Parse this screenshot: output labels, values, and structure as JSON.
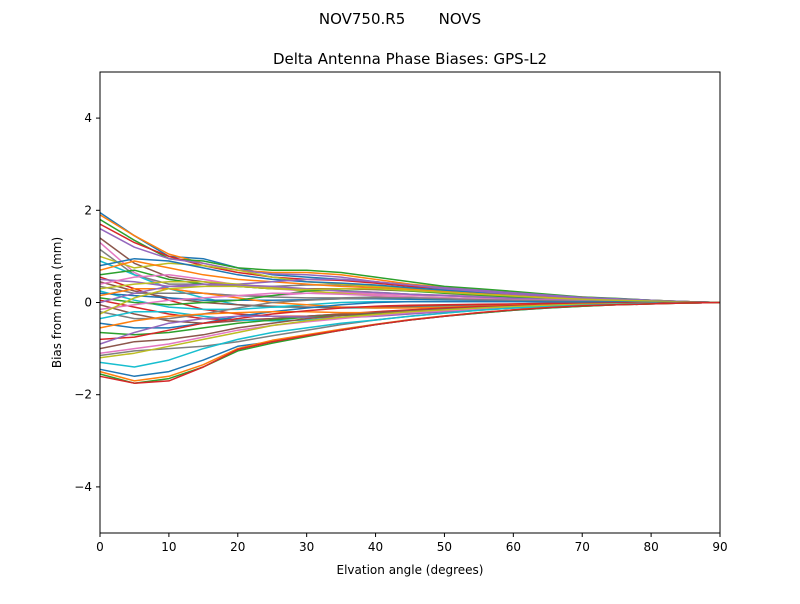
{
  "figure": {
    "suptitle": "NOV750.R5       NOVS"
  },
  "chart_data": {
    "type": "line",
    "title": "Delta Antenna Phase Biases: GPS-L2",
    "xlabel": "Elvation angle (degrees)",
    "ylabel": "Bias from mean (mm)",
    "xlim": [
      0,
      90
    ],
    "ylim": [
      -5,
      5
    ],
    "xticks": [
      0,
      10,
      20,
      30,
      40,
      50,
      60,
      70,
      80,
      90
    ],
    "xtick_labels": [
      "0",
      "10",
      "20",
      "30",
      "40",
      "50",
      "60",
      "70",
      "80",
      "90"
    ],
    "yticks": [
      -4,
      -2,
      0,
      2,
      4
    ],
    "ytick_labels": [
      "−4",
      "−2",
      "0",
      "2",
      "4"
    ],
    "grid": false,
    "legend": "none",
    "colors": [
      "#1f77b4",
      "#ff7f0e",
      "#2ca02c",
      "#d62728",
      "#9467bd",
      "#8c564b",
      "#e377c2",
      "#7f7f7f",
      "#bcbd22",
      "#17becf"
    ],
    "x": [
      0,
      5,
      10,
      15,
      20,
      25,
      30,
      35,
      40,
      45,
      50,
      55,
      60,
      65,
      70,
      75,
      80,
      85,
      90
    ],
    "series": [
      {
        "values": [
          1.95,
          1.45,
          1.0,
          0.95,
          0.75,
          0.6,
          0.55,
          0.5,
          0.45,
          0.35,
          0.3,
          0.25,
          0.2,
          0.15,
          0.1,
          0.08,
          0.05,
          0.02,
          0.0
        ]
      },
      {
        "values": [
          1.9,
          1.45,
          1.05,
          0.85,
          0.7,
          0.65,
          0.65,
          0.6,
          0.5,
          0.4,
          0.33,
          0.28,
          0.22,
          0.16,
          0.12,
          0.08,
          0.05,
          0.02,
          0.0
        ]
      },
      {
        "values": [
          1.8,
          1.35,
          0.95,
          0.9,
          0.75,
          0.7,
          0.7,
          0.65,
          0.55,
          0.45,
          0.35,
          0.3,
          0.24,
          0.18,
          0.12,
          0.09,
          0.05,
          0.02,
          0.0
        ]
      },
      {
        "values": [
          1.7,
          1.3,
          1.0,
          0.8,
          0.65,
          0.55,
          0.5,
          0.48,
          0.42,
          0.35,
          0.3,
          0.24,
          0.2,
          0.15,
          0.1,
          0.07,
          0.04,
          0.02,
          0.0
        ]
      },
      {
        "values": [
          1.6,
          1.2,
          0.95,
          0.85,
          0.7,
          0.62,
          0.6,
          0.55,
          0.45,
          0.38,
          0.32,
          0.27,
          0.21,
          0.16,
          0.11,
          0.08,
          0.05,
          0.02,
          0.0
        ]
      },
      {
        "values": [
          1.4,
          0.85,
          0.55,
          0.45,
          0.35,
          0.3,
          0.3,
          0.3,
          0.28,
          0.25,
          0.22,
          0.2,
          0.16,
          0.12,
          0.09,
          0.06,
          0.04,
          0.02,
          0.0
        ]
      },
      {
        "values": [
          1.3,
          0.65,
          0.3,
          0.2,
          0.15,
          0.15,
          0.2,
          0.22,
          0.2,
          0.18,
          0.16,
          0.14,
          0.12,
          0.09,
          0.07,
          0.05,
          0.03,
          0.01,
          0.0
        ]
      },
      {
        "values": [
          1.15,
          0.6,
          0.4,
          0.4,
          0.35,
          0.35,
          0.38,
          0.38,
          0.35,
          0.3,
          0.25,
          0.2,
          0.16,
          0.12,
          0.09,
          0.06,
          0.04,
          0.02,
          0.0
        ]
      },
      {
        "values": [
          1.0,
          0.75,
          0.85,
          0.8,
          0.7,
          0.55,
          0.45,
          0.4,
          0.35,
          0.3,
          0.25,
          0.2,
          0.16,
          0.12,
          0.09,
          0.06,
          0.04,
          0.02,
          0.0
        ]
      },
      {
        "values": [
          0.9,
          0.6,
          0.3,
          0.1,
          -0.05,
          -0.1,
          -0.1,
          -0.12,
          -0.12,
          -0.1,
          -0.08,
          -0.06,
          -0.05,
          -0.04,
          -0.03,
          -0.02,
          -0.01,
          0.0,
          0.0
        ]
      },
      {
        "values": [
          0.8,
          0.95,
          0.9,
          0.75,
          0.6,
          0.5,
          0.45,
          0.42,
          0.38,
          0.32,
          0.27,
          0.22,
          0.17,
          0.13,
          0.1,
          0.07,
          0.04,
          0.02,
          0.0
        ]
      },
      {
        "values": [
          0.7,
          0.9,
          0.75,
          0.6,
          0.5,
          0.45,
          0.4,
          0.35,
          0.32,
          0.28,
          0.23,
          0.19,
          0.15,
          0.11,
          0.08,
          0.05,
          0.03,
          0.01,
          0.0
        ]
      },
      {
        "values": [
          0.6,
          0.7,
          0.5,
          0.4,
          0.35,
          0.3,
          0.28,
          0.26,
          0.22,
          0.18,
          0.15,
          0.12,
          0.1,
          0.08,
          0.05,
          0.03,
          0.02,
          0.01,
          0.0
        ]
      },
      {
        "values": [
          0.55,
          0.3,
          0.05,
          -0.15,
          -0.25,
          -0.3,
          -0.3,
          -0.28,
          -0.25,
          -0.2,
          -0.16,
          -0.12,
          -0.09,
          -0.07,
          -0.05,
          -0.03,
          -0.02,
          -0.01,
          0.0
        ]
      },
      {
        "values": [
          0.5,
          0.45,
          0.35,
          0.35,
          0.4,
          0.45,
          0.5,
          0.5,
          0.45,
          0.38,
          0.3,
          0.24,
          0.18,
          0.14,
          0.1,
          0.07,
          0.04,
          0.02,
          0.0
        ]
      },
      {
        "values": [
          0.45,
          0.25,
          0.1,
          0.0,
          -0.05,
          -0.08,
          -0.1,
          -0.1,
          -0.1,
          -0.08,
          -0.06,
          -0.05,
          -0.04,
          -0.03,
          -0.02,
          -0.01,
          -0.01,
          0.0,
          0.0
        ]
      },
      {
        "values": [
          0.4,
          0.55,
          0.6,
          0.5,
          0.38,
          0.3,
          0.25,
          0.2,
          0.18,
          0.16,
          0.14,
          0.12,
          0.1,
          0.07,
          0.05,
          0.03,
          0.02,
          0.01,
          0.0
        ]
      },
      {
        "values": [
          0.35,
          0.2,
          0.2,
          0.2,
          0.15,
          0.12,
          0.1,
          0.1,
          0.12,
          0.12,
          0.1,
          0.08,
          0.07,
          0.05,
          0.04,
          0.03,
          0.02,
          0.01,
          0.0
        ]
      },
      {
        "values": [
          0.3,
          0.4,
          0.45,
          0.45,
          0.4,
          0.33,
          0.25,
          0.2,
          0.15,
          0.12,
          0.1,
          0.08,
          0.06,
          0.05,
          0.04,
          0.02,
          0.01,
          0.0,
          0.0
        ]
      },
      {
        "values": [
          0.25,
          0.05,
          -0.1,
          -0.15,
          -0.15,
          -0.1,
          -0.05,
          0.0,
          0.02,
          0.02,
          0.02,
          0.02,
          0.02,
          0.01,
          0.01,
          0.01,
          0.0,
          0.0,
          0.0
        ]
      },
      {
        "values": [
          0.2,
          0.15,
          0.1,
          0.05,
          0.05,
          0.05,
          0.06,
          0.08,
          0.08,
          0.07,
          0.06,
          0.05,
          0.04,
          0.03,
          0.02,
          0.01,
          0.01,
          0.0,
          0.0
        ]
      },
      {
        "values": [
          0.15,
          0.3,
          0.3,
          0.2,
          0.1,
          0.0,
          -0.05,
          -0.1,
          -0.12,
          -0.12,
          -0.1,
          -0.08,
          -0.06,
          -0.04,
          -0.03,
          -0.02,
          -0.01,
          0.0,
          0.0
        ]
      },
      {
        "values": [
          0.1,
          0.0,
          -0.05,
          0.0,
          0.05,
          0.15,
          0.25,
          0.3,
          0.3,
          0.25,
          0.2,
          0.16,
          0.12,
          0.09,
          0.06,
          0.04,
          0.02,
          0.01,
          0.0
        ]
      },
      {
        "values": [
          0.05,
          -0.1,
          -0.25,
          -0.35,
          -0.38,
          -0.35,
          -0.3,
          -0.25,
          -0.2,
          -0.16,
          -0.12,
          -0.09,
          -0.07,
          -0.05,
          -0.04,
          -0.02,
          -0.01,
          0.0,
          0.0
        ]
      },
      {
        "values": [
          0.0,
          0.2,
          0.35,
          0.4,
          0.38,
          0.35,
          0.3,
          0.25,
          0.22,
          0.18,
          0.15,
          0.12,
          0.09,
          0.07,
          0.05,
          0.03,
          0.02,
          0.01,
          0.0
        ]
      },
      {
        "values": [
          -0.05,
          -0.25,
          -0.4,
          -0.45,
          -0.4,
          -0.35,
          -0.3,
          -0.25,
          -0.22,
          -0.18,
          -0.15,
          -0.12,
          -0.09,
          -0.07,
          -0.05,
          -0.03,
          -0.02,
          -0.01,
          0.0
        ]
      },
      {
        "values": [
          -0.15,
          -0.05,
          0.05,
          0.1,
          0.15,
          0.2,
          0.2,
          0.18,
          0.15,
          0.12,
          0.1,
          0.08,
          0.06,
          0.05,
          0.04,
          0.02,
          0.01,
          0.0,
          0.0
        ]
      },
      {
        "values": [
          -0.2,
          -0.35,
          -0.35,
          -0.25,
          -0.12,
          0.0,
          0.05,
          0.08,
          0.1,
          0.1,
          0.08,
          0.06,
          0.05,
          0.04,
          0.03,
          0.02,
          0.01,
          0.0,
          0.0
        ]
      },
      {
        "values": [
          -0.25,
          0.1,
          0.3,
          0.35,
          0.35,
          0.3,
          0.28,
          0.3,
          0.3,
          0.26,
          0.22,
          0.18,
          0.14,
          0.1,
          0.07,
          0.05,
          0.03,
          0.01,
          0.0
        ]
      },
      {
        "values": [
          -0.35,
          -0.2,
          -0.2,
          -0.3,
          -0.38,
          -0.4,
          -0.38,
          -0.32,
          -0.25,
          -0.2,
          -0.16,
          -0.12,
          -0.09,
          -0.06,
          -0.04,
          -0.03,
          -0.02,
          -0.01,
          0.0
        ]
      },
      {
        "values": [
          -0.45,
          -0.55,
          -0.55,
          -0.45,
          -0.3,
          -0.2,
          -0.12,
          -0.05,
          0.0,
          0.02,
          0.02,
          0.02,
          0.02,
          0.01,
          0.01,
          0.01,
          0.0,
          0.0,
          0.0
        ]
      },
      {
        "values": [
          -0.55,
          -0.4,
          -0.3,
          -0.25,
          -0.22,
          -0.2,
          -0.2,
          -0.22,
          -0.22,
          -0.2,
          -0.16,
          -0.12,
          -0.09,
          -0.07,
          -0.05,
          -0.03,
          -0.02,
          -0.01,
          0.0
        ]
      },
      {
        "values": [
          -0.65,
          -0.7,
          -0.65,
          -0.55,
          -0.45,
          -0.38,
          -0.32,
          -0.28,
          -0.25,
          -0.22,
          -0.18,
          -0.14,
          -0.11,
          -0.08,
          -0.06,
          -0.04,
          -0.02,
          -0.01,
          0.0
        ]
      },
      {
        "values": [
          -0.8,
          -0.75,
          -0.6,
          -0.45,
          -0.35,
          -0.25,
          -0.18,
          -0.12,
          -0.08,
          -0.06,
          -0.05,
          -0.04,
          -0.03,
          -0.02,
          -0.02,
          -0.01,
          -0.01,
          0.0,
          0.0
        ]
      },
      {
        "values": [
          -0.9,
          -0.65,
          -0.45,
          -0.35,
          -0.3,
          -0.3,
          -0.32,
          -0.33,
          -0.3,
          -0.25,
          -0.2,
          -0.16,
          -0.12,
          -0.09,
          -0.06,
          -0.04,
          -0.02,
          -0.01,
          0.0
        ]
      },
      {
        "values": [
          -1.0,
          -0.85,
          -0.8,
          -0.7,
          -0.55,
          -0.45,
          -0.35,
          -0.28,
          -0.22,
          -0.18,
          -0.14,
          -0.11,
          -0.08,
          -0.06,
          -0.04,
          -0.03,
          -0.02,
          -0.01,
          0.0
        ]
      },
      {
        "values": [
          -1.1,
          -1.0,
          -0.9,
          -0.75,
          -0.6,
          -0.5,
          -0.42,
          -0.35,
          -0.28,
          -0.22,
          -0.18,
          -0.14,
          -0.1,
          -0.07,
          -0.05,
          -0.03,
          -0.02,
          -0.01,
          0.0
        ]
      },
      {
        "values": [
          -1.15,
          -1.05,
          -1.0,
          -0.95,
          -0.85,
          -0.72,
          -0.6,
          -0.48,
          -0.38,
          -0.3,
          -0.23,
          -0.17,
          -0.12,
          -0.09,
          -0.06,
          -0.04,
          -0.02,
          -0.01,
          0.0
        ]
      },
      {
        "values": [
          -1.2,
          -1.1,
          -0.95,
          -0.8,
          -0.65,
          -0.5,
          -0.4,
          -0.32,
          -0.26,
          -0.2,
          -0.16,
          -0.12,
          -0.09,
          -0.06,
          -0.04,
          -0.03,
          -0.02,
          -0.01,
          0.0
        ]
      },
      {
        "values": [
          -1.3,
          -1.4,
          -1.25,
          -1.0,
          -0.8,
          -0.65,
          -0.55,
          -0.45,
          -0.38,
          -0.3,
          -0.23,
          -0.17,
          -0.12,
          -0.09,
          -0.06,
          -0.04,
          -0.02,
          -0.01,
          0.0
        ]
      },
      {
        "values": [
          -1.45,
          -1.6,
          -1.5,
          -1.25,
          -0.95,
          -0.85,
          -0.72,
          -0.6,
          -0.48,
          -0.38,
          -0.3,
          -0.23,
          -0.17,
          -0.12,
          -0.08,
          -0.05,
          -0.03,
          -0.01,
          0.0
        ]
      },
      {
        "values": [
          -1.5,
          -1.7,
          -1.6,
          -1.35,
          -1.0,
          -0.82,
          -0.7,
          -0.58,
          -0.47,
          -0.37,
          -0.29,
          -0.22,
          -0.16,
          -0.11,
          -0.08,
          -0.05,
          -0.03,
          -0.01,
          0.0
        ]
      },
      {
        "values": [
          -1.55,
          -1.75,
          -1.65,
          -1.4,
          -1.05,
          -0.88,
          -0.74,
          -0.6,
          -0.48,
          -0.38,
          -0.3,
          -0.23,
          -0.17,
          -0.12,
          -0.08,
          -0.05,
          -0.03,
          -0.01,
          0.0
        ]
      },
      {
        "values": [
          -1.6,
          -1.75,
          -1.7,
          -1.4,
          -1.02,
          -0.85,
          -0.72,
          -0.6,
          -0.48,
          -0.38,
          -0.3,
          -0.22,
          -0.16,
          -0.11,
          -0.07,
          -0.05,
          -0.03,
          -0.01,
          0.0
        ]
      }
    ]
  }
}
